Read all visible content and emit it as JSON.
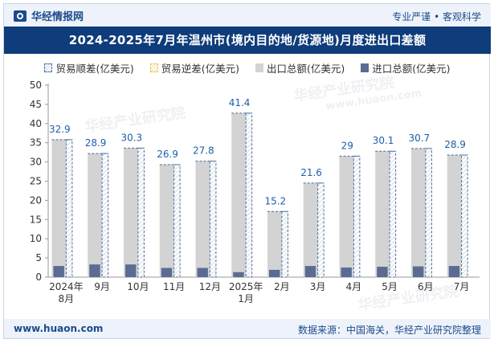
{
  "header": {
    "brand": "华经情报网",
    "slogan": "专业严谨 • 客观科学"
  },
  "colors": {
    "title_bg": "#0f3c7a",
    "export_bar": "#d3d3d3",
    "import_bar": "#5b6b93",
    "surplus_border": "#4a6f9c",
    "label_color": "#1f5fa8"
  },
  "watermarks": [
    "华经产业研究院",
    "www.huaon.com",
    "华经产业研究院"
  ],
  "chart_data": {
    "type": "bar",
    "title": "2024-2025年7月年温州市(境内目的地/货源地)月度进出口差额",
    "legend": [
      "贸易顺差(亿美元)",
      "贸易逆差(亿美元)",
      "出口总额(亿美元)",
      "进口总额(亿美元)"
    ],
    "categories": [
      [
        "2024年",
        "8月"
      ],
      [
        "9月"
      ],
      [
        "10月"
      ],
      [
        "11月"
      ],
      [
        "12月"
      ],
      [
        "2025年",
        "1月"
      ],
      [
        "2月"
      ],
      [
        "3月"
      ],
      [
        "4月"
      ],
      [
        "5月"
      ],
      [
        "6月"
      ],
      [
        "7月"
      ]
    ],
    "series": [
      {
        "name": "出口总额(亿美元)",
        "values": [
          35.8,
          32.2,
          33.6,
          29.3,
          30.2,
          42.7,
          17.1,
          24.5,
          31.5,
          32.8,
          33.5,
          31.8
        ]
      },
      {
        "name": "进口总额(亿美元)",
        "values": [
          2.9,
          3.3,
          3.3,
          2.4,
          2.4,
          1.3,
          1.9,
          2.9,
          2.5,
          2.7,
          2.8,
          2.9
        ]
      },
      {
        "name": "贸易顺差(亿美元)",
        "values": [
          32.9,
          28.9,
          30.3,
          26.9,
          27.8,
          41.4,
          15.2,
          21.6,
          29,
          30.1,
          30.7,
          28.9
        ]
      }
    ],
    "yticks": [
      0,
      5,
      10,
      15,
      20,
      25,
      30,
      35,
      40,
      45,
      50
    ],
    "ylim": [
      0,
      50
    ],
    "grid": false
  },
  "footer": {
    "site": "www.huaon.com",
    "source": "数据来源：中国海关，华经产业研究院整理"
  }
}
